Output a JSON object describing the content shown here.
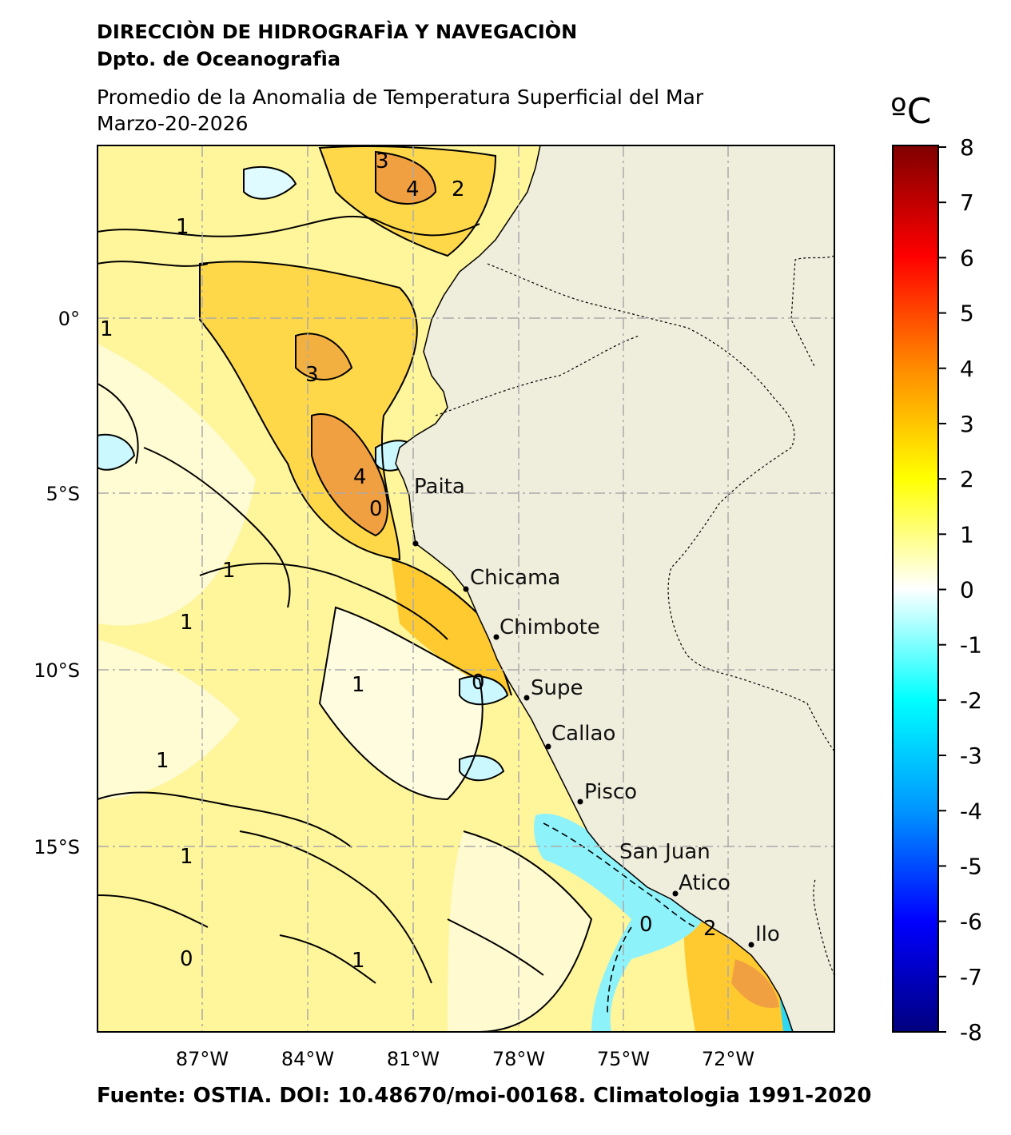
{
  "header": {
    "org": "DIRECCIÒN DE HIDROGRAFÌA Y NAVEGACIÒN",
    "dept": "Dpto. de Oceanografìa",
    "title": "Promedio de la Anomalia de Temperatura Superficial del Mar",
    "date": "Marzo-20-2026"
  },
  "footer": {
    "source": "Fuente: OSTIA. DOI: 10.48670/moi-00168. Climatologia 1991-2020"
  },
  "colorbar": {
    "unit": "ºC",
    "ticks": [
      "8",
      "7",
      "6",
      "5",
      "4",
      "3",
      "2",
      "1",
      "0",
      "-1",
      "-2",
      "-3",
      "-4",
      "-5",
      "-6",
      "-7",
      "-8"
    ],
    "colors": [
      "#7f0000",
      "#ff0000",
      "#ff8a00",
      "#ffff00",
      "#ffffff",
      "#00ffff",
      "#0000ff",
      "#00007f"
    ]
  },
  "map": {
    "lon_labels": [
      "87°W",
      "84°W",
      "81°W",
      "78°W",
      "75°W",
      "72°W"
    ],
    "lat_labels": [
      "0°",
      "5°S",
      "10°S",
      "15°S"
    ],
    "places": [
      {
        "name": "Paita"
      },
      {
        "name": "Chicama"
      },
      {
        "name": "Chimbote"
      },
      {
        "name": "Supe"
      },
      {
        "name": "Callao"
      },
      {
        "name": "Pisco"
      },
      {
        "name": "San Juan"
      },
      {
        "name": "Atico"
      },
      {
        "name": "Ilo"
      }
    ],
    "contour_labels": [
      "1",
      "1",
      "2",
      "3",
      "4",
      "3",
      "4",
      "0",
      "1",
      "1",
      "0",
      "1",
      "1",
      "1",
      "0",
      "1",
      "2",
      "0"
    ],
    "land_color": "#efeddc",
    "ocean_base_color": "#fff59a"
  }
}
